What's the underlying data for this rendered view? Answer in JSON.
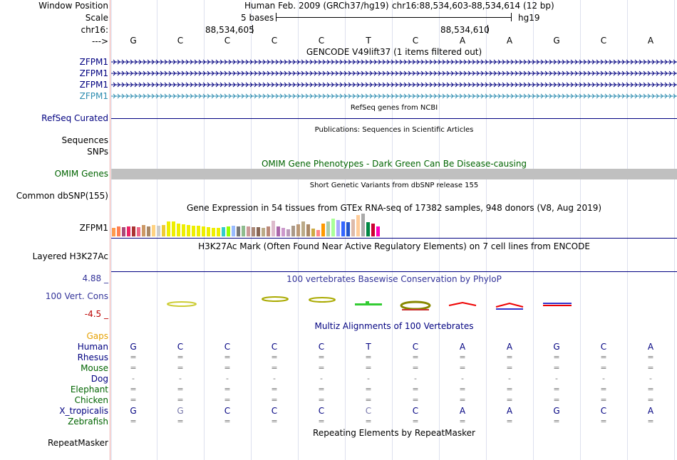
{
  "header": {
    "window_position_label": "Window Position",
    "scale_label": "Scale",
    "chrom_label": "chr16:",
    "strand_label": "--->",
    "assembly": "Human Feb. 2009 (GRCh37/hg19)",
    "position": "chr16:88,534,603-88,534,614 (12 bp)",
    "scale_text": "5 bases",
    "scale_db": "hg19",
    "coord_left": "88,534,605",
    "coord_right": "88,534,610"
  },
  "bases": [
    "G",
    "C",
    "C",
    "C",
    "C",
    "T",
    "C",
    "A",
    "A",
    "G",
    "C",
    "A"
  ],
  "gencode": {
    "title": "GENCODE V49lift37 (1 items filtered out)",
    "tracks": [
      "ZFPM1",
      "ZFPM1",
      "ZFPM1",
      "ZFPM1"
    ]
  },
  "refseq": {
    "label": "RefSeq Curated",
    "title": "RefSeq genes from NCBI"
  },
  "publications": {
    "title": "Publications: Sequences in Scientific Articles",
    "label1": "Sequences",
    "label2": "SNPs"
  },
  "omim": {
    "title": "OMIM Gene Phenotypes - Dark Green Can Be Disease-causing",
    "label": "OMIM Genes"
  },
  "dbsnp": {
    "title": "Short Genetic Variants from dbSNP release 155",
    "label": "Common dbSNP(155)"
  },
  "gtex": {
    "title": "Gene Expression in 54 tissues from GTEx RNA-seq of 17382 samples, 948 donors (V8, Aug 2019)",
    "label": "ZFPM1",
    "bars": [
      {
        "v": 12,
        "c": "#ff9a4d"
      },
      {
        "v": 14,
        "c": "#ff7f50"
      },
      {
        "v": 13,
        "c": "#aa4a7a"
      },
      {
        "v": 14,
        "c": "#ee2266"
      },
      {
        "v": 14,
        "c": "#aa3333"
      },
      {
        "v": 13,
        "c": "#ee6688"
      },
      {
        "v": 16,
        "c": "#cc9966"
      },
      {
        "v": 14,
        "c": "#aa8866"
      },
      {
        "v": 16,
        "c": "#ffd280"
      },
      {
        "v": 15,
        "c": "#cccccc"
      },
      {
        "v": 16,
        "c": "#eecc33"
      },
      {
        "v": 21,
        "c": "#eeee00"
      },
      {
        "v": 21,
        "c": "#eeee00"
      },
      {
        "v": 18,
        "c": "#eeee00"
      },
      {
        "v": 17,
        "c": "#eeee00"
      },
      {
        "v": 16,
        "c": "#eeee00"
      },
      {
        "v": 15,
        "c": "#eeee00"
      },
      {
        "v": 15,
        "c": "#eeee00"
      },
      {
        "v": 14,
        "c": "#eeee00"
      },
      {
        "v": 13,
        "c": "#eeee00"
      },
      {
        "v": 12,
        "c": "#eeee00"
      },
      {
        "v": 12,
        "c": "#eeee00"
      },
      {
        "v": 13,
        "c": "#33cccc"
      },
      {
        "v": 14,
        "c": "#99ff00"
      },
      {
        "v": 15,
        "c": "#99bbff"
      },
      {
        "v": 14,
        "c": "#777777"
      },
      {
        "v": 15,
        "c": "#8fbc8f"
      },
      {
        "v": 14,
        "c": "#cc9999"
      },
      {
        "v": 13,
        "c": "#aa8877"
      },
      {
        "v": 13,
        "c": "#886655"
      },
      {
        "v": 12,
        "c": "#bbaa88"
      },
      {
        "v": 14,
        "c": "#bb8877"
      },
      {
        "v": 22,
        "c": "#ddbbcc"
      },
      {
        "v": 14,
        "c": "#aa66aa"
      },
      {
        "v": 12,
        "c": "#cc99cc"
      },
      {
        "v": 10,
        "c": "#bb99bb"
      },
      {
        "v": 15,
        "c": "#aa9988"
      },
      {
        "v": 17,
        "c": "#bb9977"
      },
      {
        "v": 21,
        "c": "#bbaa88"
      },
      {
        "v": 17,
        "c": "#aa8866"
      },
      {
        "v": 11,
        "c": "#ccaa44"
      },
      {
        "v": 9,
        "c": "#ff8888"
      },
      {
        "v": 18,
        "c": "#ff9900"
      },
      {
        "v": 21,
        "c": "#aaccaa"
      },
      {
        "v": 25,
        "c": "#aaff99"
      },
      {
        "v": 23,
        "c": "#aaaaff"
      },
      {
        "v": 21,
        "c": "#3366ff"
      },
      {
        "v": 20,
        "c": "#2255cc"
      },
      {
        "v": 24,
        "c": "#ddbbaa"
      },
      {
        "v": 30,
        "c": "#ffcc99"
      },
      {
        "v": 32,
        "c": "#aaaaaa"
      },
      {
        "v": 20,
        "c": "#008844"
      },
      {
        "v": 18,
        "c": "#cc0033"
      },
      {
        "v": 14,
        "c": "#ff00bb"
      }
    ]
  },
  "h3k27ac": {
    "title": "H3K27Ac Mark (Often Found Near Active Regulatory Elements) on 7 cell lines from ENCODE",
    "label": "Layered H3K27Ac"
  },
  "phylop": {
    "title": "100 vertebrates Basewise Conservation by PhyloP",
    "label": "100 Vert. Cons",
    "max": "4.88 _",
    "min": "-4.5 _"
  },
  "multiz": {
    "title": "Multiz Alignments of 100 Vertebrates",
    "gaps_label": "Gaps",
    "species": [
      {
        "name": "Human",
        "color": "#000080",
        "seq": [
          "G",
          "C",
          "C",
          "C",
          "C",
          "T",
          "C",
          "A",
          "A",
          "G",
          "C",
          "A"
        ]
      },
      {
        "name": "Rhesus",
        "color": "#000080",
        "seq": [
          "=",
          "=",
          "=",
          "=",
          "=",
          "=",
          "=",
          "=",
          "=",
          "=",
          "=",
          "="
        ]
      },
      {
        "name": "Mouse",
        "color": "#006400",
        "seq": [
          "=",
          "=",
          "=",
          "=",
          "=",
          "=",
          "=",
          "=",
          "=",
          "=",
          "=",
          "="
        ]
      },
      {
        "name": "Dog",
        "color": "#000080",
        "seq": [
          "-",
          "-",
          "-",
          "-",
          "-",
          "-",
          "-",
          "-",
          "-",
          "-",
          "-",
          "-"
        ]
      },
      {
        "name": "Elephant",
        "color": "#006400",
        "seq": [
          "=",
          "=",
          "=",
          "=",
          "=",
          "=",
          "=",
          "=",
          "=",
          "=",
          "=",
          "="
        ]
      },
      {
        "name": "Chicken",
        "color": "#006400",
        "seq": [
          "=",
          "=",
          "=",
          "=",
          "=",
          "=",
          "=",
          "=",
          "=",
          "=",
          "=",
          "="
        ]
      },
      {
        "name": "X_tropicalis",
        "color": "#000080",
        "seq": [
          "G",
          "G",
          "C",
          "C",
          "C",
          "C",
          "C",
          "A",
          "A",
          "G",
          "C",
          "A"
        ]
      },
      {
        "name": "Zebrafish",
        "color": "#006400",
        "seq": [
          "=",
          "=",
          "=",
          "=",
          "=",
          "=",
          "=",
          "=",
          "=",
          "=",
          "=",
          "="
        ]
      }
    ]
  },
  "repeatmasker": {
    "title": "Repeating Elements by RepeatMasker",
    "label": "RepeatMasker"
  },
  "colors": {
    "navy": "#000080",
    "green": "#006400",
    "phylop": "#333399",
    "gaps": "#e6a000",
    "omim_bar": "#c0c0c0",
    "gencode_light": "#2d8cb0"
  }
}
